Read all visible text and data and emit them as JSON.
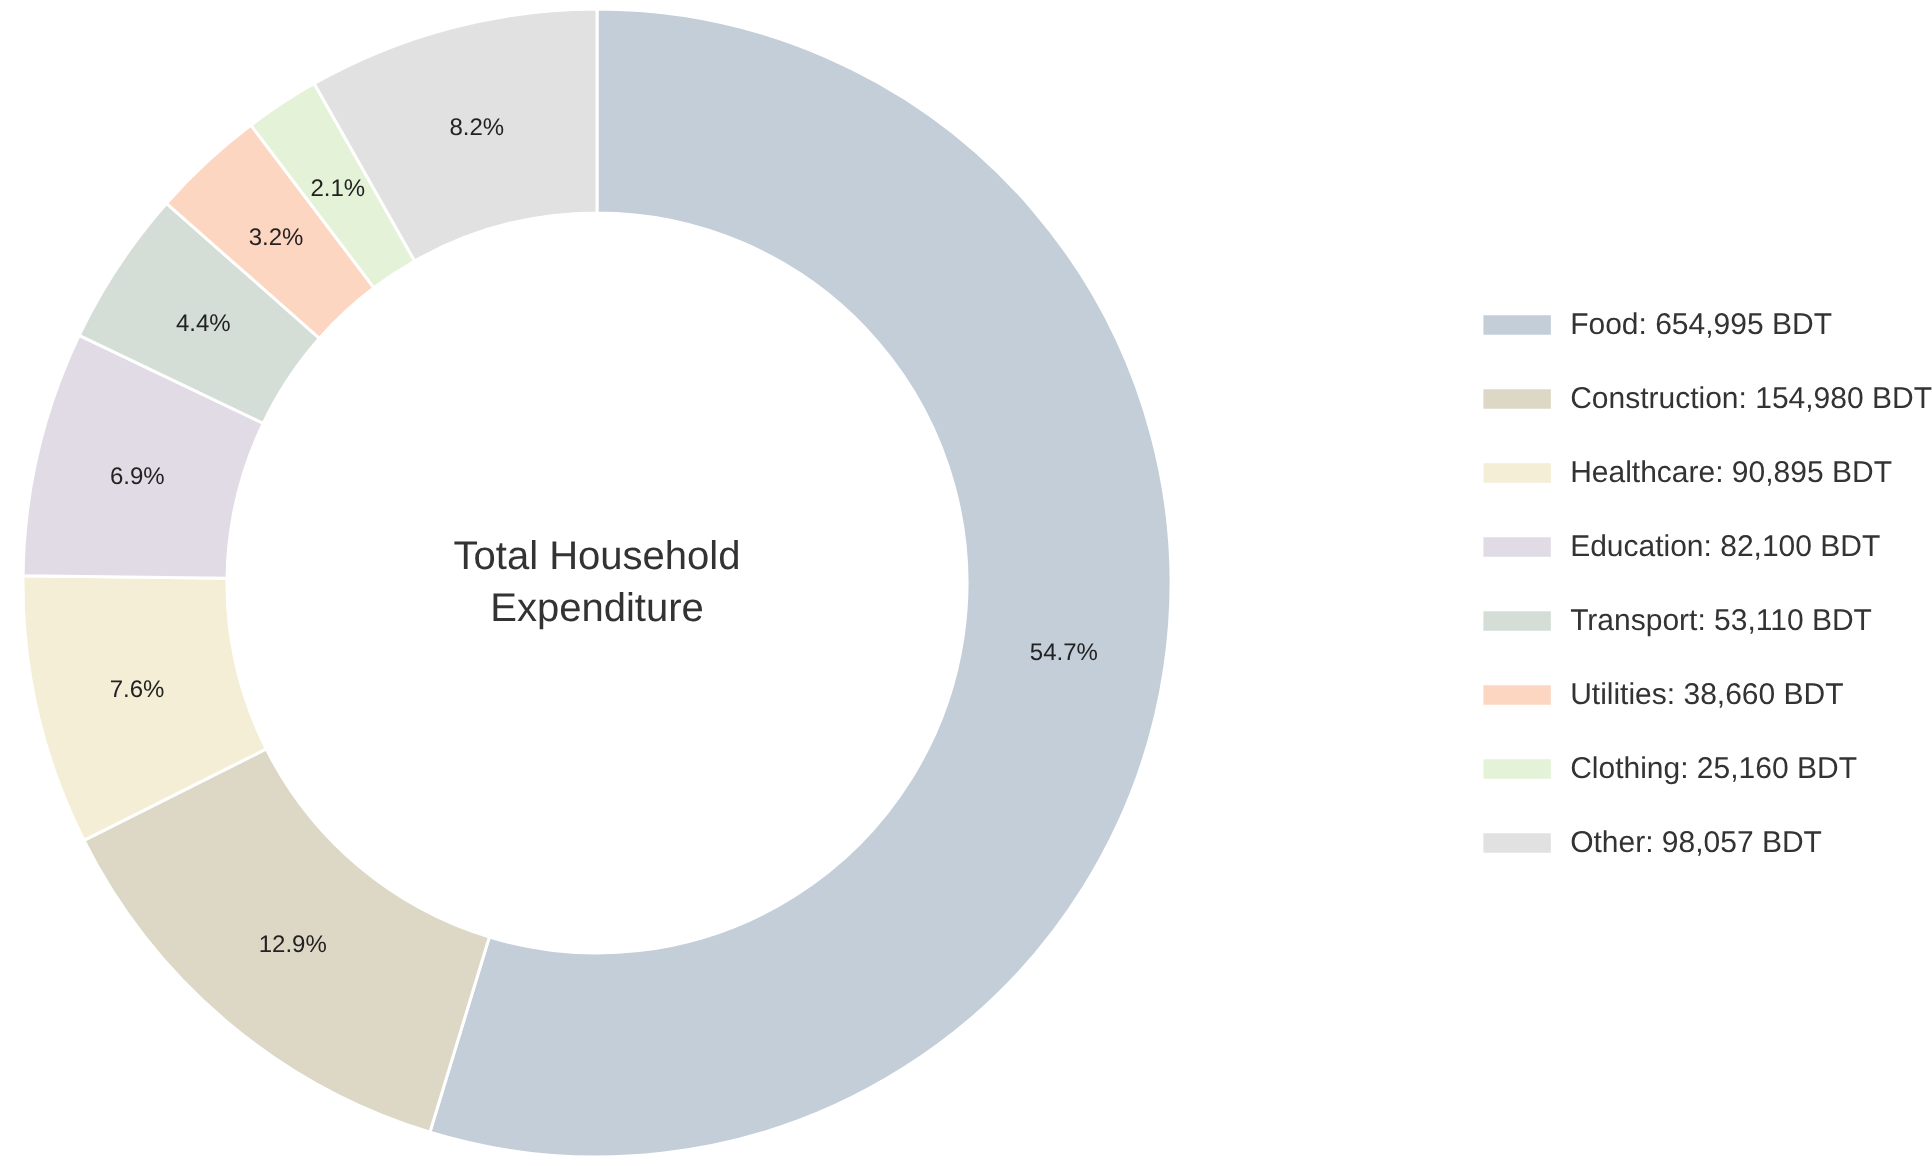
{
  "chart_data": {
    "type": "donut",
    "categories": [
      "Food: 654,995 BDT",
      "Construction: 154,980 BDT",
      "Healthcare: 90,895 BDT",
      "Education: 82,100 BDT",
      "Transport: 53,110 BDT",
      "Utilities: 38,660 BDT",
      "Clothing: 25,160 BDT",
      "Other: 98,057 BDT"
    ],
    "values": [
      54.7,
      12.9,
      7.6,
      6.9,
      4.4,
      3.2,
      2.1,
      8.2
    ],
    "value_labels": [
      "54.7%",
      "12.9%",
      "7.6%",
      "6.9%",
      "4.4%",
      "3.2%",
      "2.1%",
      "8.2%"
    ],
    "colors": [
      "#c3ced9",
      "#ddd7c5",
      "#f4eed6",
      "#e1dbe6",
      "#d4ddd6",
      "#fdd6c1",
      "#e4f2d8",
      "#e1e1e1"
    ],
    "annotations": [
      "Total Household\nExpenditure"
    ],
    "legend": "right"
  }
}
